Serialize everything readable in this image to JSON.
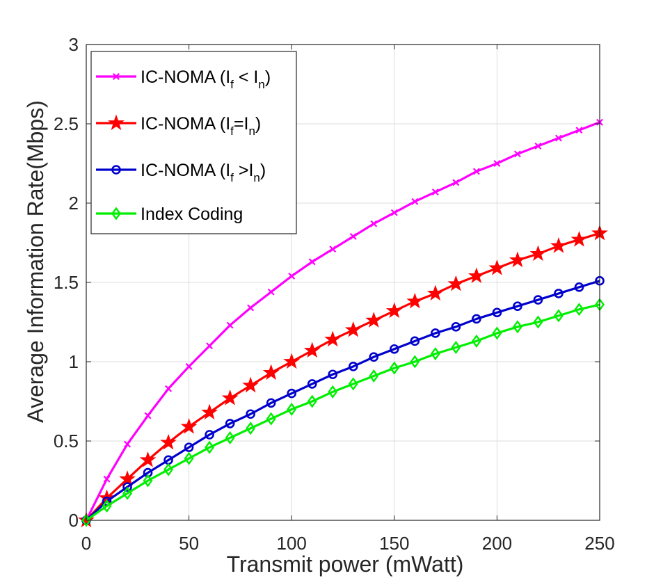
{
  "chart_data": {
    "type": "line",
    "title": "",
    "xlabel": "Transmit power (mWatt)",
    "ylabel": "Average Information Rate(Mbps)",
    "xlim": [
      0,
      250
    ],
    "ylim": [
      0,
      3
    ],
    "xticks": [
      0,
      50,
      100,
      150,
      200,
      250
    ],
    "xtick_labels": [
      "0",
      "50",
      "100",
      "150",
      "200",
      "250"
    ],
    "yticks": [
      0,
      0.5,
      1,
      1.5,
      2,
      2.5,
      3
    ],
    "ytick_labels": [
      "0",
      "0.5",
      "1",
      "1.5",
      "2",
      "2.5",
      "3"
    ],
    "grid": true,
    "legend_position": "top-left",
    "x": [
      0,
      10,
      20,
      30,
      40,
      50,
      60,
      70,
      80,
      90,
      100,
      110,
      120,
      130,
      140,
      150,
      160,
      170,
      180,
      190,
      200,
      210,
      220,
      230,
      240,
      250
    ],
    "series": [
      {
        "name": "IC-NOMA (I_f < I_n)",
        "legend": {
          "main": "IC-NOMA (I",
          "sub1": "f",
          "mid": " < I",
          "sub2": "n",
          "end": ")"
        },
        "color": "#ff00ff",
        "marker": "x",
        "values": [
          0,
          0.26,
          0.48,
          0.66,
          0.83,
          0.97,
          1.1,
          1.23,
          1.34,
          1.44,
          1.54,
          1.63,
          1.71,
          1.79,
          1.87,
          1.94,
          2.01,
          2.07,
          2.13,
          2.2,
          2.25,
          2.31,
          2.36,
          2.41,
          2.46,
          2.51
        ]
      },
      {
        "name": "IC-NOMA (I_f = I_n)",
        "legend": {
          "main": "IC-NOMA (I",
          "sub1": "f",
          "mid": "=I",
          "sub2": "n",
          "end": ")"
        },
        "color": "#ff0000",
        "marker": "star",
        "values": [
          0,
          0.14,
          0.26,
          0.38,
          0.49,
          0.59,
          0.68,
          0.77,
          0.85,
          0.93,
          1.0,
          1.07,
          1.14,
          1.2,
          1.26,
          1.32,
          1.38,
          1.43,
          1.49,
          1.54,
          1.59,
          1.64,
          1.68,
          1.73,
          1.77,
          1.81
        ]
      },
      {
        "name": "IC-NOMA (I_f > I_n)",
        "legend": {
          "main": "IC-NOMA (I",
          "sub1": "f",
          "mid": " >I",
          "sub2": "n",
          "end": ")"
        },
        "color": "#0000cc",
        "marker": "circle",
        "values": [
          0,
          0.12,
          0.21,
          0.3,
          0.38,
          0.46,
          0.54,
          0.61,
          0.67,
          0.74,
          0.8,
          0.86,
          0.92,
          0.97,
          1.03,
          1.08,
          1.13,
          1.18,
          1.22,
          1.27,
          1.31,
          1.35,
          1.39,
          1.43,
          1.47,
          1.51
        ]
      },
      {
        "name": "Index Coding",
        "legend": {
          "main": "Index Coding",
          "sub1": "",
          "mid": "",
          "sub2": "",
          "end": ""
        },
        "color": "#00ee00",
        "marker": "diamond",
        "values": [
          0,
          0.09,
          0.17,
          0.25,
          0.32,
          0.39,
          0.46,
          0.52,
          0.58,
          0.64,
          0.7,
          0.75,
          0.81,
          0.86,
          0.91,
          0.96,
          1.0,
          1.05,
          1.09,
          1.13,
          1.18,
          1.22,
          1.25,
          1.29,
          1.33,
          1.36
        ]
      }
    ]
  }
}
